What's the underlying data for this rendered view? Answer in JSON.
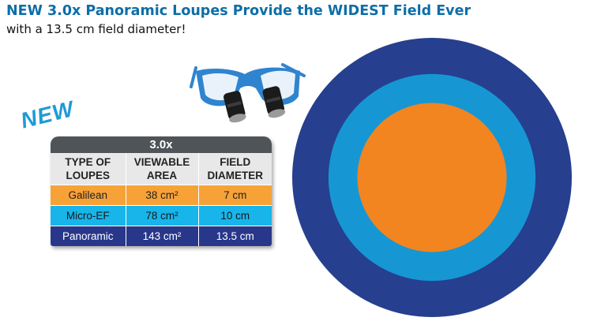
{
  "header": {
    "headline": "NEW 3.0x Panoramic Loupes Provide the WIDEST Field Ever",
    "subheadline": "with a 13.5 cm field diameter!"
  },
  "badge": {
    "label": "NEW"
  },
  "table": {
    "title": "3.0x",
    "headers": [
      "TYPE OF\nLOUPES",
      "VIEWABLE\nAREA",
      "FIELD\nDIAMETER"
    ],
    "rows": [
      [
        "Galilean",
        "38 cm²",
        "7 cm"
      ],
      [
        "Micro-EF",
        "78 cm²",
        "10 cm"
      ],
      [
        "Panoramic",
        "143 cm²",
        "13.5 cm"
      ]
    ]
  },
  "field_diameters_cm": {
    "galilean": 7,
    "micro_ef": 10,
    "panoramic": 13.5
  },
  "colors": {
    "headline": "#0d6ea8",
    "galilean": "#f7a237",
    "micro_ef": "#18b5ea",
    "panoramic": "#28378a",
    "table_title_bg": "#4f5459",
    "target_outer": "#263f8e",
    "target_middle": "#1697d4",
    "target_inner": "#f28520",
    "glasses_frame": "#2f84d0"
  },
  "icons": {
    "loupes": "loupe-glasses-icon",
    "target": "field-of-view-target"
  }
}
